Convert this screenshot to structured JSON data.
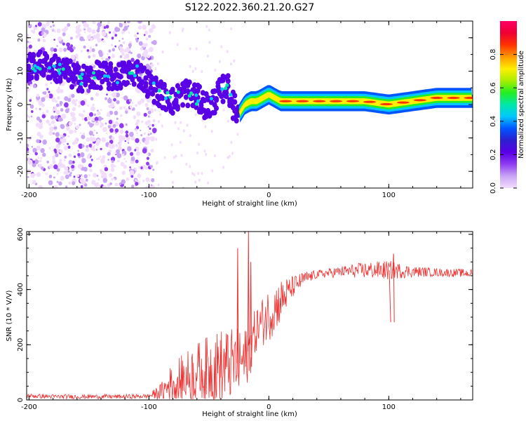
{
  "title": "S122.2022.360.21.20.G27",
  "colors": {
    "axis": "#000000",
    "snr_line": "#ee3333",
    "speckle": "#c9a6f5",
    "colormap": [
      "#f2ddfc",
      "#c9a6f5",
      "#8f3cf2",
      "#5a00e6",
      "#2d1fd0",
      "#0055ff",
      "#00c8ff",
      "#00e8a8",
      "#22ee22",
      "#aaee00",
      "#ffee00",
      "#ff9900",
      "#ff3300",
      "#ee0033",
      "#ff0066"
    ]
  },
  "chart_data": [
    {
      "type": "heatmap",
      "title": "",
      "xlabel": "Height of straight line (km)",
      "ylabel": "Frequency (Hz)",
      "xlim": [
        -202,
        170
      ],
      "ylim": [
        -25,
        25
      ],
      "x_ticks": [
        "-200",
        "-100",
        "0",
        "100"
      ],
      "y_ticks": [
        "-20",
        "-10",
        "0",
        "10",
        "20"
      ],
      "colorbar": {
        "label": "Normalized spectral amplitude",
        "range": [
          0,
          1
        ],
        "ticks": [
          "0.0",
          "0.2",
          "0.4",
          "0.6",
          "0.8"
        ]
      },
      "ridge": {
        "x": [
          -200,
          -190,
          -180,
          -170,
          -160,
          -150,
          -140,
          -130,
          -120,
          -110,
          -100,
          -90,
          -80,
          -70,
          -60,
          -50,
          -40,
          -35,
          -30,
          -25,
          -20,
          -15,
          -10,
          -5,
          0,
          10,
          20,
          40,
          60,
          80,
          100,
          120,
          140,
          160,
          170
        ],
        "y": [
          11,
          12,
          11,
          10,
          8,
          8,
          9,
          8,
          9,
          10,
          6,
          3,
          1,
          4,
          2,
          -1,
          4,
          6,
          0,
          -3,
          0,
          1,
          1,
          2,
          3,
          1,
          1,
          1,
          1,
          1,
          0,
          1,
          2,
          2,
          2
        ]
      }
    },
    {
      "type": "line",
      "title": "",
      "xlabel": "Height of straight line (km)",
      "ylabel": "SNR (10 * V/V)",
      "xlim": [
        -202,
        170
      ],
      "ylim": [
        0,
        610
      ],
      "x_ticks": [
        "-200",
        "-100",
        "0",
        "100"
      ],
      "y_ticks": [
        "0",
        "200",
        "400",
        "600"
      ],
      "trend": {
        "x": [
          -202,
          -180,
          -160,
          -140,
          -120,
          -100,
          -90,
          -80,
          -70,
          -60,
          -50,
          -40,
          -30,
          -20,
          -10,
          0,
          10,
          20,
          30,
          40,
          60,
          80,
          100,
          120,
          140,
          160,
          170
        ],
        "y": [
          15,
          12,
          12,
          12,
          12,
          14,
          30,
          60,
          80,
          100,
          110,
          120,
          130,
          140,
          260,
          310,
          360,
          410,
          440,
          455,
          465,
          470,
          470,
          465,
          462,
          460,
          458
        ]
      },
      "noise": {
        "x": [
          -202,
          -150,
          -100,
          -90,
          -80,
          -60,
          -40,
          -20,
          -10,
          0,
          10,
          20,
          30,
          40,
          60,
          80,
          100,
          120,
          140,
          170
        ],
        "amp": [
          8,
          8,
          8,
          30,
          80,
          110,
          140,
          120,
          80,
          100,
          80,
          40,
          25,
          15,
          20,
          30,
          35,
          20,
          15,
          15
        ]
      },
      "spikes": [
        {
          "x": -26,
          "y": 550
        },
        {
          "x": -17,
          "y": 610
        },
        {
          "x": -15,
          "y": 500
        },
        {
          "x": 104,
          "y": 530
        },
        {
          "x": 101,
          "y": 380
        }
      ]
    }
  ]
}
